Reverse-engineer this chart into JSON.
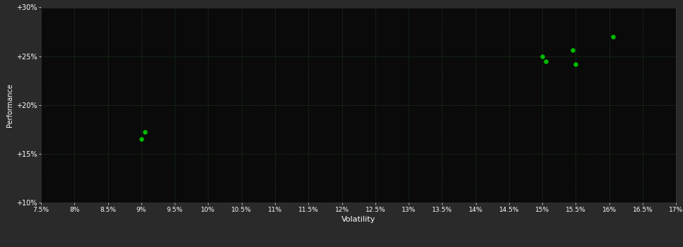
{
  "points_x": [
    9.05,
    9.0,
    15.0,
    15.05,
    15.45,
    15.5,
    16.05
  ],
  "points_y": [
    17.2,
    16.5,
    25.0,
    24.5,
    25.6,
    24.2,
    27.0
  ],
  "point_color": "#00bb00",
  "point_size": 22,
  "bg_color": "#2a2a2a",
  "plot_bg_color": "#0a0a0a",
  "grid_color": "#1a3a1a",
  "text_color": "#ffffff",
  "xlabel": "Volatility",
  "ylabel": "Performance",
  "xlim": [
    7.5,
    17.0
  ],
  "ylim": [
    10.0,
    30.0
  ],
  "xtick_values": [
    7.5,
    8.0,
    8.5,
    9.0,
    9.5,
    10.0,
    10.5,
    11.0,
    11.5,
    12.0,
    12.5,
    13.0,
    13.5,
    14.0,
    14.5,
    15.0,
    15.5,
    16.0,
    16.5,
    17.0
  ],
  "ytick_values": [
    10.0,
    15.0,
    20.0,
    25.0,
    30.0
  ],
  "ytick_labels": [
    "+10%",
    "+15%",
    "+20%",
    "+25%",
    "+30%"
  ],
  "figsize": [
    9.66,
    3.5
  ],
  "dpi": 100
}
